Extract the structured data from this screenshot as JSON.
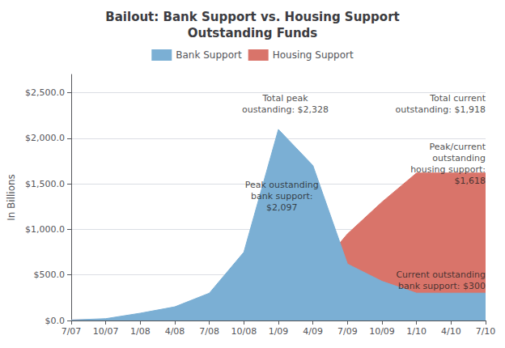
{
  "chart_data": {
    "type": "area",
    "title": "Bailout: Bank Support vs. Housing Support\nOutstanding Funds",
    "ylabel": "In Billions",
    "categories": [
      "7/07",
      "10/07",
      "1/08",
      "4/08",
      "7/08",
      "10/08",
      "1/09",
      "4/09",
      "7/09",
      "10/09",
      "1/10",
      "4/10",
      "7/10"
    ],
    "series": [
      {
        "name": "Housing Support",
        "color": "#d9746a",
        "values": [
          5,
          10,
          30,
          60,
          120,
          500,
          231,
          500,
          950,
          1300,
          1618,
          1618,
          1618
        ]
      },
      {
        "name": "Bank Support",
        "color": "#7bafd4",
        "values": [
          5,
          20,
          80,
          150,
          300,
          750,
          2097,
          1700,
          620,
          430,
          300,
          300,
          300
        ]
      }
    ],
    "stacked": false,
    "ylim": [
      0,
      2700
    ],
    "yticks": [
      {
        "value": 0,
        "label": "$0.0"
      },
      {
        "value": 500,
        "label": "$500.0"
      },
      {
        "value": 1000,
        "label": "$1,000.0"
      },
      {
        "value": 1500,
        "label": "$1,500.0"
      },
      {
        "value": 2000,
        "label": "$2,000.0"
      },
      {
        "value": 2500,
        "label": "$2,500.0"
      }
    ],
    "grid": true,
    "legend": "top",
    "annotations": [
      {
        "text": "Total peak\noustanding: $2,328",
        "x": 6.2,
        "y": 2500
      },
      {
        "text": "Peak oustanding\nbank support:\n$2,097",
        "x": 6.1,
        "y": 1550
      },
      {
        "text": "Total current\noutstanding: $1,918",
        "x": 12.0,
        "y": 2500
      },
      {
        "text": "Peak/current\noutstanding\nhousing support:\n$1,618",
        "x": 12.0,
        "y": 1970
      },
      {
        "text": "Current outstanding\nbank support: $300",
        "x": 12.0,
        "y": 560
      }
    ]
  }
}
